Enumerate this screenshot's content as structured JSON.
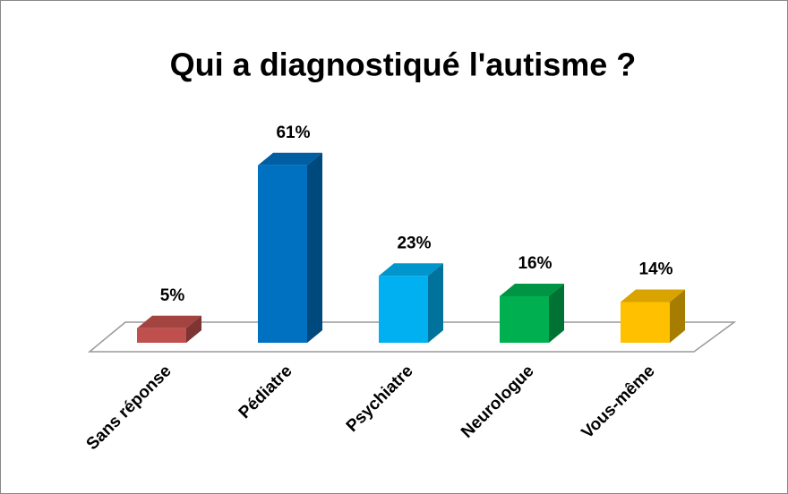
{
  "chart_data": {
    "type": "bar3d",
    "title": "Qui a diagnostiqué l'autisme ?",
    "categories": [
      "Sans réponse",
      "Pédiatre",
      "Psychiatre",
      "Neurologue",
      "Vous-même"
    ],
    "values": [
      5,
      61,
      23,
      16,
      14
    ],
    "value_labels": [
      "5%",
      "61%",
      "23%",
      "16%",
      "14%"
    ],
    "colors": [
      "#c0504d",
      "#0070c0",
      "#00b0f0",
      "#00b050",
      "#ffc000"
    ]
  }
}
